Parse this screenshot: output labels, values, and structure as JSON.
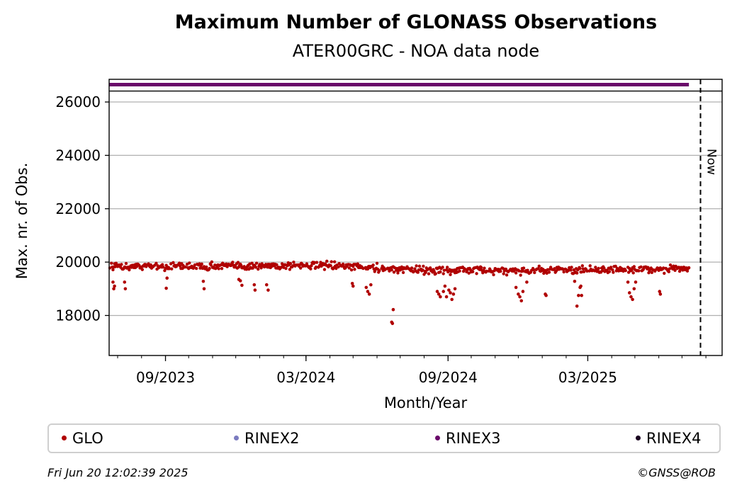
{
  "header": {
    "title": "Maximum Number of GLONASS Observations",
    "subtitle": "ATER00GRC - NOA data node"
  },
  "chart_data": {
    "type": "scatter",
    "title": "Maximum Number of GLONASS Observations",
    "subtitle": "ATER00GRC - NOA data node",
    "xlabel": "Month/Year",
    "ylabel": "Max. nr. of Obs.",
    "x_range": [
      "2023-06-20",
      "2025-08-22"
    ],
    "ylim": [
      16500,
      26850
    ],
    "yticks": [
      18000,
      20000,
      22000,
      24000,
      26000
    ],
    "xticks": [
      {
        "date": "2023-09-01",
        "label": "09/2023"
      },
      {
        "date": "2024-03-01",
        "label": "03/2024"
      },
      {
        "date": "2024-09-01",
        "label": "09/2024"
      },
      {
        "date": "2025-03-01",
        "label": "03/2025"
      }
    ],
    "grid": "horizontal",
    "now": {
      "date": "2025-07-25",
      "label": "Now"
    },
    "top_band": {
      "series": "RINEX3",
      "value": 26650,
      "start": "2023-06-20",
      "end": "2025-07-10"
    },
    "series": [
      {
        "name": "GLO",
        "color": "#b00000",
        "baseline": [
          [
            "2023-06-20",
            19850
          ],
          [
            "2023-12-01",
            19850
          ],
          [
            "2024-03-15",
            19880
          ],
          [
            "2024-06-01",
            19780
          ],
          [
            "2024-08-01",
            19700
          ],
          [
            "2024-12-01",
            19680
          ],
          [
            "2025-03-01",
            19700
          ],
          [
            "2025-07-10",
            19760
          ]
        ],
        "outliers": [
          [
            "2023-06-25",
            19250
          ],
          [
            "2023-06-26",
            19000
          ],
          [
            "2023-06-27",
            19100
          ],
          [
            "2023-07-10",
            19250
          ],
          [
            "2023-07-11",
            19000
          ],
          [
            "2023-09-02",
            19020
          ],
          [
            "2023-09-03",
            19400
          ],
          [
            "2023-10-20",
            19280
          ],
          [
            "2023-10-21",
            19000
          ],
          [
            "2023-12-05",
            19350
          ],
          [
            "2023-12-07",
            19300
          ],
          [
            "2023-12-09",
            19130
          ],
          [
            "2023-12-25",
            19150
          ],
          [
            "2023-12-26",
            18950
          ],
          [
            "2024-01-10",
            19150
          ],
          [
            "2024-01-12",
            18950
          ],
          [
            "2024-04-30",
            19200
          ],
          [
            "2024-05-01",
            19100
          ],
          [
            "2024-05-18",
            19050
          ],
          [
            "2024-05-20",
            18900
          ],
          [
            "2024-05-22",
            18800
          ],
          [
            "2024-05-24",
            19150
          ],
          [
            "2024-06-22",
            18220
          ],
          [
            "2024-06-20",
            17750
          ],
          [
            "2024-06-21",
            17700
          ],
          [
            "2024-08-18",
            18900
          ],
          [
            "2024-08-20",
            18800
          ],
          [
            "2024-08-22",
            18700
          ],
          [
            "2024-08-26",
            18900
          ],
          [
            "2024-08-28",
            19100
          ],
          [
            "2024-08-30",
            18700
          ],
          [
            "2024-09-02",
            18950
          ],
          [
            "2024-09-04",
            18850
          ],
          [
            "2024-09-06",
            18600
          ],
          [
            "2024-09-08",
            18800
          ],
          [
            "2024-09-10",
            19000
          ],
          [
            "2024-11-28",
            19050
          ],
          [
            "2024-12-01",
            18800
          ],
          [
            "2024-12-03",
            18700
          ],
          [
            "2024-12-05",
            18550
          ],
          [
            "2024-12-07",
            18900
          ],
          [
            "2024-12-12",
            19250
          ],
          [
            "2025-01-05",
            18800
          ],
          [
            "2025-01-06",
            18750
          ],
          [
            "2025-02-12",
            19280
          ],
          [
            "2025-02-15",
            18350
          ],
          [
            "2025-02-17",
            18750
          ],
          [
            "2025-02-19",
            19050
          ],
          [
            "2025-02-20",
            19100
          ],
          [
            "2025-02-21",
            18750
          ],
          [
            "2025-04-22",
            19250
          ],
          [
            "2025-04-24",
            18850
          ],
          [
            "2025-04-26",
            18700
          ],
          [
            "2025-04-28",
            18600
          ],
          [
            "2025-04-30",
            19000
          ],
          [
            "2025-05-02",
            19250
          ],
          [
            "2025-06-02",
            18900
          ],
          [
            "2025-06-03",
            18800
          ]
        ]
      },
      {
        "name": "RINEX2",
        "color": "#7b7bbf",
        "values": []
      },
      {
        "name": "RINEX3",
        "color": "#6a0a6a",
        "values": "top_band"
      },
      {
        "name": "RINEX4",
        "color": "#1a0020",
        "values": []
      }
    ]
  },
  "legend": {
    "items": [
      {
        "label": "GLO",
        "color": "#b00000"
      },
      {
        "label": "RINEX2",
        "color": "#7b7bbf"
      },
      {
        "label": "RINEX3",
        "color": "#6a0a6a"
      },
      {
        "label": "RINEX4",
        "color": "#1a0020"
      }
    ]
  },
  "footer": {
    "timestamp": "Fri Jun 20 12:02:39 2025",
    "copyright": "©GNSS@ROB"
  }
}
